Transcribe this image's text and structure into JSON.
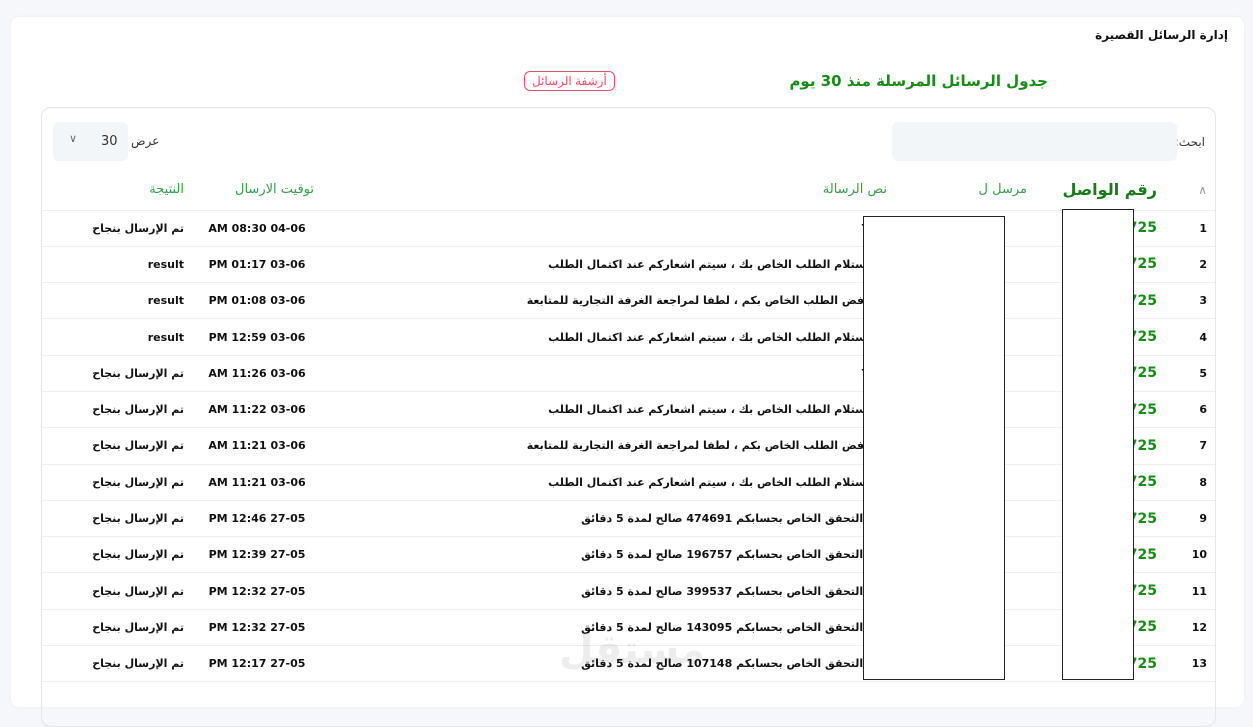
{
  "page_title": "إدارة الرسائل القصيرة",
  "table_title": "جدول الرسائل المرسلة منذ 30 يوم",
  "archive_button": "أرشفة الرسائل",
  "search_label": "ابحث:",
  "search_value": "",
  "show_label": "عرض",
  "page_size": "30",
  "columns": {
    "receiver": "رقم الواصل",
    "sender": "مرسل ل",
    "message": "نص الرسالة",
    "time": "توقيت الارسال",
    "result": "النتيجة"
  },
  "rows": [
    {
      "n": "1",
      "receiver": "9725",
      "message": "Test",
      "time": "AM 08:30 04-06",
      "result": "تم الإرسال بنجاح"
    },
    {
      "n": "2",
      "receiver": "9725",
      "message": "تم تستلام الطلب الخاص بك ، سيتم اشعاركم عند اكتمال الطلب",
      "time": "PM 01:17 03-06",
      "result": "result"
    },
    {
      "n": "3",
      "receiver": "9725",
      "message": "تم رفض الطلب الخاص بكم ، لطفا لمراجعة الغرفة التجارية للمتابعة",
      "time": "PM 01:08 03-06",
      "result": "result"
    },
    {
      "n": "4",
      "receiver": "9725",
      "message": "تم تستلام الطلب الخاص بك ، سيتم اشعاركم عند اكتمال الطلب",
      "time": "PM 12:59 03-06",
      "result": "result"
    },
    {
      "n": "5",
      "receiver": "9725",
      "message": "Test",
      "time": "AM 11:26 03-06",
      "result": "تم الإرسال بنجاح"
    },
    {
      "n": "6",
      "receiver": "9725",
      "message": "تم تستلام الطلب الخاص بك ، سيتم اشعاركم عند اكتمال الطلب",
      "time": "AM 11:22 03-06",
      "result": "تم الإرسال بنجاح"
    },
    {
      "n": "7",
      "receiver": "9725",
      "message": "تم رفض الطلب الخاص بكم ، لطفا لمراجعة الغرفة التجارية للمتابعة",
      "time": "AM 11:21 03-06",
      "result": "تم الإرسال بنجاح"
    },
    {
      "n": "8",
      "receiver": "9725",
      "message": "تم تستلام الطلب الخاص بك ، سيتم اشعاركم عند اكتمال الطلب",
      "time": "AM 11:21 03-06",
      "result": "تم الإرسال بنجاح"
    },
    {
      "n": "9",
      "receiver": "9725",
      "message": "رمز التحقق الخاص بحسابكم 474691 صالح لمدة 5 دقائق",
      "time": "PM 12:46 27-05",
      "result": "تم الإرسال بنجاح"
    },
    {
      "n": "10",
      "receiver": "9725",
      "message": "رمز التحقق الخاص بحسابكم 196757 صالح لمدة 5 دقائق",
      "time": "PM 12:39 27-05",
      "result": "تم الإرسال بنجاح"
    },
    {
      "n": "11",
      "receiver": "9725",
      "message": "رمز التحقق الخاص بحسابكم 399537 صالح لمدة 5 دقائق",
      "time": "PM 12:32 27-05",
      "result": "تم الإرسال بنجاح"
    },
    {
      "n": "12",
      "receiver": "9725",
      "message": "رمز التحقق الخاص بحسابكم 143095 صالح لمدة 5 دقائق",
      "time": "PM 12:32 27-05",
      "result": "تم الإرسال بنجاح"
    },
    {
      "n": "13",
      "receiver": "9725",
      "message": "رمز التحقق الخاص بحسابكم 107148 صالح لمدة 5 دقائق",
      "time": "PM 12:17 27-05",
      "result": "تم الإرسال بنجاح"
    }
  ],
  "watermark": "مستقل mostaql.com",
  "colors": {
    "accent_green": "#1a8a1a",
    "header_green": "#3a9a4a",
    "archive_red": "#e8506a"
  }
}
